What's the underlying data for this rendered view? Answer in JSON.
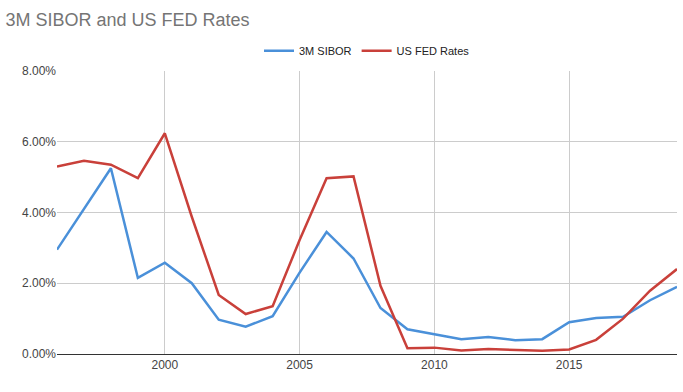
{
  "chart_data": {
    "type": "line",
    "title": "3M SIBOR and US FED Rates",
    "x": [
      1996,
      1997,
      1998,
      1999,
      2000,
      2001,
      2002,
      2003,
      2004,
      2005,
      2006,
      2007,
      2008,
      2009,
      2010,
      2011,
      2012,
      2013,
      2014,
      2015,
      2016,
      2017,
      2018,
      2019
    ],
    "series": [
      {
        "name": "3M SIBOR",
        "color": "#4a90d9",
        "values": [
          2.95,
          4.1,
          5.25,
          2.15,
          2.58,
          2.0,
          0.97,
          0.77,
          1.07,
          2.3,
          3.45,
          2.7,
          1.3,
          0.7,
          0.57,
          0.42,
          0.48,
          0.39,
          0.42,
          0.9,
          1.02,
          1.05,
          1.52,
          1.9
        ]
      },
      {
        "name": "US FED Rates",
        "color": "#c9403a",
        "values": [
          5.3,
          5.46,
          5.35,
          4.97,
          6.24,
          3.88,
          1.67,
          1.13,
          1.35,
          3.22,
          4.97,
          5.02,
          1.93,
          0.16,
          0.18,
          0.1,
          0.14,
          0.11,
          0.09,
          0.13,
          0.4,
          1.0,
          1.79,
          2.4
        ]
      }
    ],
    "xlim": [
      1996,
      2019
    ],
    "xticks": [
      2000,
      2005,
      2010,
      2015
    ],
    "ylim": [
      0,
      8
    ],
    "yticks": [
      {
        "value": 0,
        "label": "0.00%"
      },
      {
        "value": 2,
        "label": "2.00%"
      },
      {
        "value": 4,
        "label": "4.00%"
      },
      {
        "value": 6,
        "label": "6.00%"
      },
      {
        "value": 8,
        "label": "8.00%"
      }
    ],
    "grid": true,
    "legend": "top"
  }
}
